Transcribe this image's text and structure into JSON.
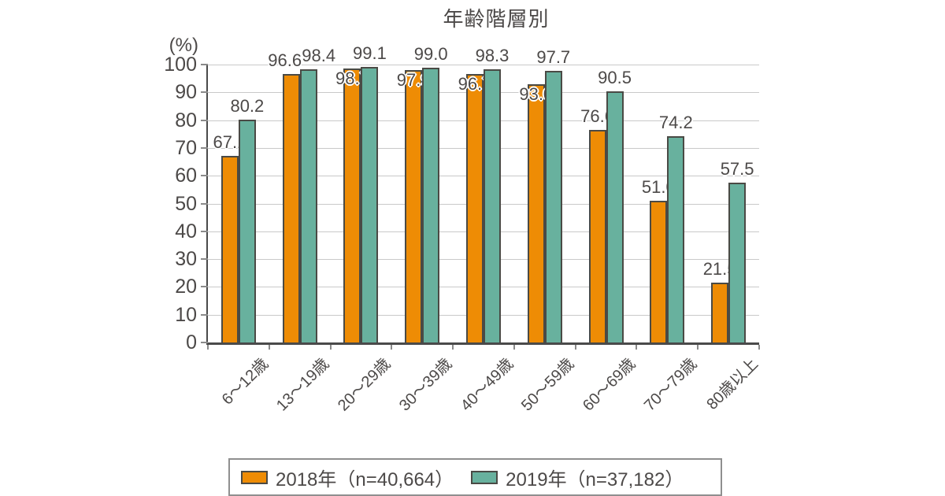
{
  "chart_data": {
    "type": "bar",
    "title": "年齢階層別",
    "unit_label": "(%)",
    "categories": [
      "6～12歳",
      "13～19歳",
      "20～29歳",
      "30～39歳",
      "40～49歳",
      "50～59歳",
      "60～69歳",
      "70～79歳",
      "80歳以上"
    ],
    "series": [
      {
        "name": "2018年（n=40,664）",
        "color": "#EE8C05",
        "values": [
          67.1,
          96.6,
          98.7,
          97.9,
          96.7,
          93.0,
          76.6,
          51.0,
          21.5
        ],
        "value_label_placement": [
          "above",
          "above",
          "on",
          "on",
          "on",
          "on",
          "above",
          "above",
          "above"
        ]
      },
      {
        "name": "2019年（n=37,182）",
        "color": "#68B19E",
        "values": [
          80.2,
          98.4,
          99.1,
          99.0,
          98.3,
          97.7,
          90.5,
          74.2,
          57.5
        ],
        "value_label_placement": [
          "above",
          "above",
          "above",
          "above",
          "above",
          "above",
          "above",
          "above",
          "above"
        ]
      }
    ],
    "ylim": [
      0,
      100
    ],
    "yticks": [
      0,
      10,
      20,
      30,
      40,
      50,
      60,
      70,
      80,
      90,
      100
    ],
    "grid": "horizontal",
    "legend_position": "bottom",
    "colors": {
      "axis": "#4a4a4a",
      "gridline": "#c9c9c9",
      "bar_border": "#4a4a45",
      "text": "#4c4948",
      "legend_border": "#8f8f8f"
    }
  }
}
